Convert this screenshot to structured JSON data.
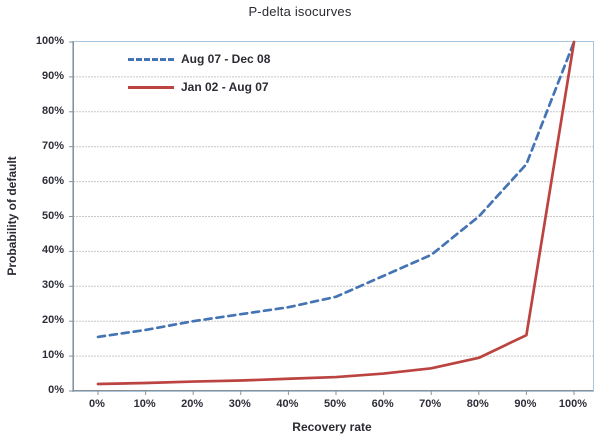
{
  "chart_data": {
    "type": "line",
    "title": "P-delta isocurves",
    "xlabel": "Recovery rate",
    "ylabel": "Probability of default",
    "x_tick_labels": [
      "0%",
      "10%",
      "20%",
      "30%",
      "40%",
      "50%",
      "60%",
      "70%",
      "80%",
      "90%",
      "100%"
    ],
    "y_tick_labels": [
      "0%",
      "10%",
      "20%",
      "30%",
      "40%",
      "50%",
      "60%",
      "70%",
      "80%",
      "90%",
      "100%"
    ],
    "x_values_pct": [
      0,
      10,
      20,
      30,
      40,
      50,
      60,
      70,
      80,
      90,
      100
    ],
    "ylim": [
      0,
      100
    ],
    "grid": "horizontal",
    "legend_position": "inside-top-left",
    "series": [
      {
        "name": "Aug 07 - Dec 08",
        "style": "dashed",
        "color": "#4574b4",
        "values": [
          15.5,
          17.5,
          20,
          22,
          24,
          27,
          33,
          39,
          50,
          65,
          100
        ]
      },
      {
        "name": "Jan 02 - Aug 07",
        "style": "solid",
        "color": "#bb4440",
        "values": [
          2,
          2.3,
          2.7,
          3,
          3.5,
          4,
          5,
          6.5,
          9.5,
          16,
          100
        ]
      }
    ]
  },
  "colors": {
    "plot_border": "#aac5de",
    "gridline": "#c7c7c7",
    "axis_line": "#8f8f8f",
    "text": "#2b2b33",
    "background": "#ffffff"
  }
}
